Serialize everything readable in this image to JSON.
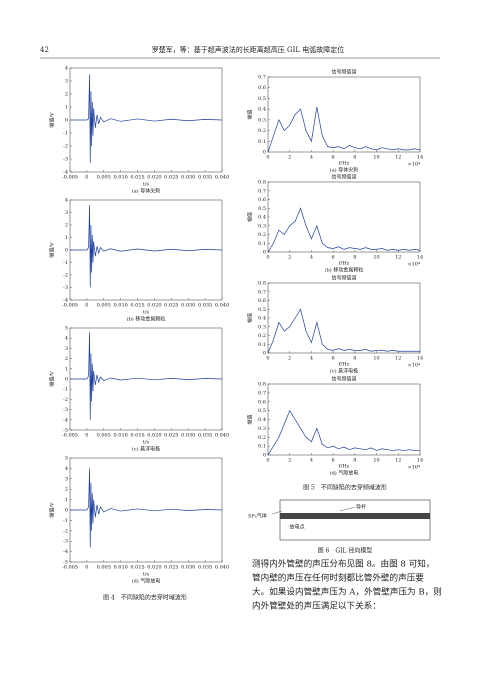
{
  "header": {
    "page_number": "42",
    "running_title": "罗楚军，等：基于超声波法的长距离超高压 GIL 电弧故障定位"
  },
  "chart_data": [
    {
      "type": "line",
      "caption": "(a) 导体尖刺",
      "x_label": "t/s",
      "y_label": "幅值/V",
      "color": "#1f3f9f",
      "x": [
        -0.005,
        -0.002,
        0,
        0.0005,
        0.0008,
        0.001,
        0.0012,
        0.0014,
        0.0016,
        0.0018,
        0.002,
        0.0025,
        0.003,
        0.0035,
        0.004,
        0.005,
        0.007,
        0.01,
        0.015,
        0.02,
        0.025,
        0.03,
        0.035,
        0.04
      ],
      "values": [
        0,
        0,
        0,
        0.1,
        3.5,
        -3.3,
        2.2,
        -2.0,
        1.4,
        -1.2,
        0.9,
        -0.6,
        0.4,
        -0.3,
        0.2,
        -0.15,
        0.1,
        -0.1,
        0.08,
        -0.08,
        0.06,
        -0.06,
        0.05,
        0
      ],
      "xlim": [
        -0.005,
        0.04
      ],
      "xticks": [
        -0.005,
        0,
        0.005,
        {
          "value": 0.01,
          "label": "0.010"
        },
        0.015,
        {
          "value": 0.02,
          "label": "0.020"
        },
        0.025,
        {
          "value": 0.03,
          "label": "0.030"
        },
        0.035,
        {
          "value": 0.04,
          "label": "0.040"
        }
      ],
      "ylim": [
        -4,
        4
      ],
      "yticks": [
        -4,
        -3,
        -2,
        -1,
        0,
        1,
        2,
        3,
        4
      ]
    },
    {
      "type": "line",
      "caption": "(b) 移动金属颗粒",
      "x_label": "t/s",
      "y_label": "幅值/V",
      "color": "#1f3f9f",
      "x": [
        -0.005,
        -0.002,
        0,
        0.0005,
        0.0008,
        0.001,
        0.0012,
        0.0014,
        0.0016,
        0.0018,
        0.002,
        0.0025,
        0.003,
        0.0035,
        0.004,
        0.005,
        0.007,
        0.01,
        0.015,
        0.02,
        0.025,
        0.03,
        0.035,
        0.04
      ],
      "values": [
        0,
        0,
        0,
        0.2,
        3.6,
        -3.0,
        2.0,
        -1.8,
        1.2,
        -1.0,
        0.7,
        -0.5,
        0.3,
        -0.25,
        0.2,
        -0.1,
        0.1,
        -0.1,
        0.08,
        -0.08,
        0.06,
        -0.06,
        0.05,
        0
      ],
      "xlim": [
        -0.005,
        0.04
      ],
      "xticks": [
        -0.005,
        0,
        0.005,
        {
          "value": 0.01,
          "label": "0.010"
        },
        0.015,
        {
          "value": 0.02,
          "label": "0.020"
        },
        0.025,
        {
          "value": 0.03,
          "label": "0.030"
        },
        0.035,
        {
          "value": 0.04,
          "label": "0.040"
        }
      ],
      "ylim": [
        -4,
        4
      ],
      "yticks": [
        -4,
        -3,
        -2,
        -1,
        0,
        1,
        2,
        3,
        4
      ]
    },
    {
      "type": "line",
      "caption": "(c) 悬浮电极",
      "x_label": "t/s",
      "y_label": "幅值/V",
      "color": "#1f3f9f",
      "x": [
        -0.005,
        -0.002,
        0,
        0.0005,
        0.0008,
        0.001,
        0.0012,
        0.0014,
        0.0016,
        0.0018,
        0.002,
        0.0025,
        0.003,
        0.0035,
        0.004,
        0.005,
        0.007,
        0.01,
        0.015,
        0.02,
        0.025,
        0.03,
        0.035,
        0.04
      ],
      "values": [
        0,
        0,
        0,
        0.3,
        4.6,
        -4.0,
        2.5,
        -2.2,
        1.5,
        -1.2,
        0.8,
        -0.6,
        0.4,
        -0.3,
        0.2,
        -0.15,
        0.1,
        -0.1,
        0.08,
        -0.08,
        0.06,
        -0.06,
        0.05,
        0
      ],
      "xlim": [
        -0.005,
        0.04
      ],
      "xticks": [
        -0.005,
        0,
        0.005,
        {
          "value": 0.01,
          "label": "0.010"
        },
        0.015,
        {
          "value": 0.02,
          "label": "0.020"
        },
        0.025,
        {
          "value": 0.03,
          "label": "0.030"
        },
        0.035,
        {
          "value": 0.04,
          "label": "0.040"
        }
      ],
      "ylim": [
        -5,
        5
      ],
      "yticks": [
        -5,
        -4,
        -3,
        -2,
        -1,
        0,
        1,
        2,
        3,
        4,
        5
      ]
    },
    {
      "type": "line",
      "caption": "(d) 气隙放电",
      "x_label": "t/s",
      "y_label": "幅值/V",
      "color": "#1f3f9f",
      "x": [
        -0.005,
        -0.002,
        0,
        0.0005,
        0.0008,
        0.001,
        0.0012,
        0.0014,
        0.0016,
        0.0018,
        0.002,
        0.0025,
        0.003,
        0.0035,
        0.004,
        0.005,
        0.007,
        0.01,
        0.015,
        0.02,
        0.025,
        0.03,
        0.035,
        0.04
      ],
      "values": [
        0,
        0,
        0,
        0.3,
        4.0,
        -3.6,
        2.6,
        -2.0,
        1.6,
        -1.3,
        1.0,
        -0.7,
        0.5,
        -0.4,
        0.3,
        -0.2,
        0.15,
        -0.1,
        0.1,
        -0.08,
        0.08,
        -0.06,
        0.05,
        0
      ],
      "xlim": [
        -0.005,
        0.04
      ],
      "xticks": [
        -0.005,
        0,
        0.005,
        {
          "value": 0.01,
          "label": "0.010"
        },
        0.015,
        {
          "value": 0.02,
          "label": "0.020"
        },
        0.025,
        {
          "value": 0.03,
          "label": "0.030"
        },
        0.035,
        {
          "value": 0.04,
          "label": "0.040"
        }
      ],
      "ylim": [
        -5,
        5
      ],
      "yticks": [
        -5,
        -4,
        -3,
        -2,
        -1,
        0,
        1,
        2,
        3,
        4,
        5
      ]
    },
    {
      "type": "line",
      "title": "信号频值谱",
      "caption": "(a) 导体尖刺",
      "x_label": "f/Hz",
      "x_multiplier": "×10⁴",
      "y_label": "幅值",
      "color": "#1f3f9f",
      "x": [
        0,
        0.5,
        1,
        1.5,
        2,
        2.5,
        3,
        3.5,
        4,
        4.5,
        5,
        5.5,
        6,
        6.5,
        7,
        7.5,
        8,
        8.5,
        9,
        9.5,
        10,
        10.5,
        11,
        11.5,
        12,
        12.5,
        13,
        13.5,
        14
      ],
      "values": [
        0,
        0.15,
        0.3,
        0.2,
        0.25,
        0.35,
        0.4,
        0.2,
        0.1,
        0.42,
        0.15,
        0.05,
        0.04,
        0.05,
        0.03,
        0.06,
        0.04,
        0.03,
        0.05,
        0.03,
        0.02,
        0.04,
        0.03,
        0.02,
        0.03,
        0.02,
        0.02,
        0.03,
        0.02
      ],
      "xlim": [
        0,
        14
      ],
      "xticks": [
        0,
        2,
        4,
        6,
        8,
        10,
        12,
        14
      ],
      "ylim": [
        0,
        0.7
      ],
      "yticks": [
        0,
        0.1,
        0.2,
        0.3,
        0.4,
        0.5,
        0.6,
        0.7
      ]
    },
    {
      "type": "line",
      "title": "信号频值谱",
      "caption": "(b) 移动金属颗粒",
      "x_label": "f/Hz",
      "x_multiplier": "×10⁴",
      "y_label": "幅值",
      "color": "#1f3f9f",
      "x": [
        0,
        0.5,
        1,
        1.5,
        2,
        2.5,
        3,
        3.5,
        4,
        4.5,
        5,
        5.5,
        6,
        6.5,
        7,
        7.5,
        8,
        8.5,
        9,
        9.5,
        10,
        10.5,
        11,
        11.5,
        12,
        12.5,
        13,
        13.5,
        14
      ],
      "values": [
        0,
        0.1,
        0.25,
        0.2,
        0.3,
        0.35,
        0.5,
        0.3,
        0.15,
        0.3,
        0.1,
        0.05,
        0.04,
        0.06,
        0.03,
        0.05,
        0.04,
        0.03,
        0.05,
        0.03,
        0.03,
        0.04,
        0.02,
        0.03,
        0.02,
        0.03,
        0.02,
        0.03,
        0.02
      ],
      "xlim": [
        0,
        14
      ],
      "xticks": [
        0,
        2,
        4,
        6,
        8,
        10,
        12,
        14
      ],
      "ylim": [
        0,
        0.8
      ],
      "yticks": [
        0,
        0.1,
        0.2,
        0.3,
        0.4,
        0.5,
        0.6,
        0.7,
        0.8
      ]
    },
    {
      "type": "line",
      "title": "信号频值谱",
      "caption": "(c) 悬浮电极",
      "x_label": "f/Hz",
      "x_multiplier": "×10⁴",
      "y_label": "幅值",
      "color": "#1f3f9f",
      "x": [
        0,
        0.5,
        1,
        1.5,
        2,
        2.5,
        3,
        3.5,
        4,
        4.5,
        5,
        5.5,
        6,
        6.5,
        7,
        7.5,
        8,
        8.5,
        9,
        9.5,
        10,
        10.5,
        11,
        11.5,
        12,
        12.5,
        13,
        13.5,
        14
      ],
      "values": [
        0,
        0.15,
        0.35,
        0.25,
        0.3,
        0.4,
        0.5,
        0.25,
        0.12,
        0.35,
        0.1,
        0.04,
        0.03,
        0.05,
        0.03,
        0.04,
        0.03,
        0.03,
        0.04,
        0.02,
        0.03,
        0.03,
        0.02,
        0.03,
        0.02,
        0.02,
        0.02,
        0.02,
        0.02
      ],
      "xlim": [
        0,
        14
      ],
      "xticks": [
        0,
        2,
        4,
        6,
        8,
        10,
        12,
        14
      ],
      "ylim": [
        0,
        0.8
      ],
      "yticks": [
        0,
        0.1,
        0.2,
        0.3,
        0.4,
        0.5,
        0.6,
        0.7,
        0.8
      ]
    },
    {
      "type": "line",
      "title": "信号频值谱",
      "caption": "(d) 气隙放电",
      "x_label": "f/Hz",
      "x_multiplier": "×10⁴",
      "y_label": "幅值",
      "color": "#1f3f9f",
      "x": [
        0,
        0.5,
        1,
        1.5,
        2,
        2.5,
        3,
        3.5,
        4,
        4.5,
        5,
        5.5,
        6,
        6.5,
        7,
        7.5,
        8,
        8.5,
        9,
        9.5,
        10,
        10.5,
        11,
        11.5,
        12,
        12.5,
        13,
        13.5,
        14
      ],
      "values": [
        0,
        0.1,
        0.2,
        0.35,
        0.5,
        0.4,
        0.3,
        0.2,
        0.15,
        0.3,
        0.12,
        0.08,
        0.1,
        0.07,
        0.09,
        0.06,
        0.08,
        0.07,
        0.06,
        0.08,
        0.05,
        0.07,
        0.06,
        0.05,
        0.06,
        0.05,
        0.06,
        0.05,
        0.05
      ],
      "xlim": [
        0,
        14
      ],
      "xticks": [
        0,
        2,
        4,
        6,
        8,
        10,
        12,
        14
      ],
      "ylim": [
        0,
        0.8
      ],
      "yticks": [
        0,
        0.1,
        0.2,
        0.3,
        0.4,
        0.5,
        0.6,
        0.7,
        0.8
      ]
    }
  ],
  "figure4": {
    "caption": "图 4　不同缺陷的去穿时域波形"
  },
  "figure5": {
    "caption": "图 5　不同缺陷的去穿频域波形"
  },
  "figure6": {
    "conductor_label": "导杆",
    "gas_label": "SF₆气体",
    "point_label": "·放电点",
    "caption": "图 6　GIL 径向模型"
  },
  "body": {
    "lines": [
      "测得内外管壁的声压分布见图 8。由图 8 可知，",
      "管内壁的声压在任何时刻都比管外壁的声压要",
      "大。如果设内管壁声压为 A，外管壁声压为 B，则",
      "内外管壁处的声压满足以下关系："
    ]
  }
}
